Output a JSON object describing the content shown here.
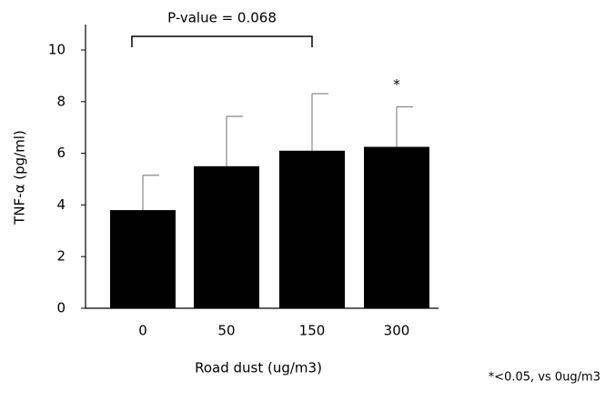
{
  "chart_data": {
    "type": "bar",
    "categories": [
      "0",
      "50",
      "150",
      "300"
    ],
    "values": [
      3.8,
      5.5,
      6.1,
      6.25
    ],
    "errors": [
      1.35,
      1.93,
      2.21,
      1.55
    ],
    "color": "#000000",
    "significance": [
      null,
      null,
      null,
      "*"
    ],
    "bracket_label": "P-value = 0.068",
    "x_label": "Road dust (ug/m3)",
    "y_label": "TNF-α (pg/ml)",
    "footnote": "*<0.05, vs 0ug/m3",
    "ylim": [
      0,
      11
    ],
    "yticks": [
      0,
      2,
      4,
      6,
      8,
      10
    ],
    "grid": false
  }
}
